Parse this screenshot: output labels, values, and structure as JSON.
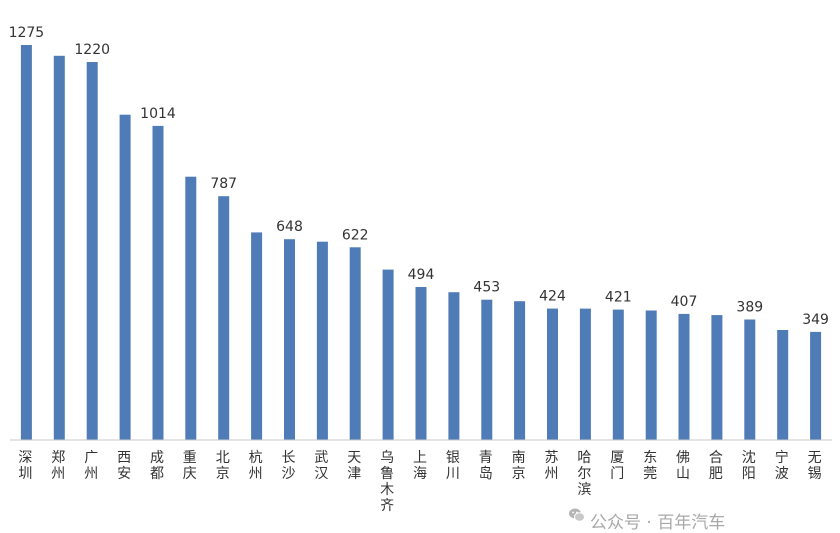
{
  "chart_data": {
    "type": "bar",
    "categories": [
      "深圳",
      "郑州",
      "广州",
      "西安",
      "成都",
      "重庆",
      "北京",
      "杭州",
      "长沙",
      "武汉",
      "天津",
      "乌鲁木齐",
      "上海",
      "银川",
      "青岛",
      "南京",
      "苏州",
      "哈尔滨",
      "厦门",
      "东莞",
      "佛山",
      "合肥",
      "沈阳",
      "宁波",
      "无锡"
    ],
    "values": [
      1275,
      1240,
      1220,
      1050,
      1014,
      850,
      787,
      670,
      648,
      640,
      622,
      550,
      494,
      477,
      453,
      448,
      424,
      424,
      421,
      418,
      407,
      403,
      389,
      355,
      349
    ],
    "data_labels": [
      {
        "index": 0,
        "text": "1275"
      },
      {
        "index": 2,
        "text": "1220"
      },
      {
        "index": 4,
        "text": "1014"
      },
      {
        "index": 6,
        "text": "787"
      },
      {
        "index": 8,
        "text": "648"
      },
      {
        "index": 10,
        "text": "622"
      },
      {
        "index": 12,
        "text": "494"
      },
      {
        "index": 14,
        "text": "453"
      },
      {
        "index": 16,
        "text": "424"
      },
      {
        "index": 18,
        "text": "421"
      },
      {
        "index": 20,
        "text": "407"
      },
      {
        "index": 22,
        "text": "389"
      },
      {
        "index": 24,
        "text": "349"
      }
    ],
    "ylim": [
      0,
      1275
    ],
    "grid": false,
    "legend": "none",
    "bar_color": "#4f7cb6"
  },
  "watermark": {
    "text": "公众号 · 百年汽车",
    "icon": "wechat-icon"
  }
}
